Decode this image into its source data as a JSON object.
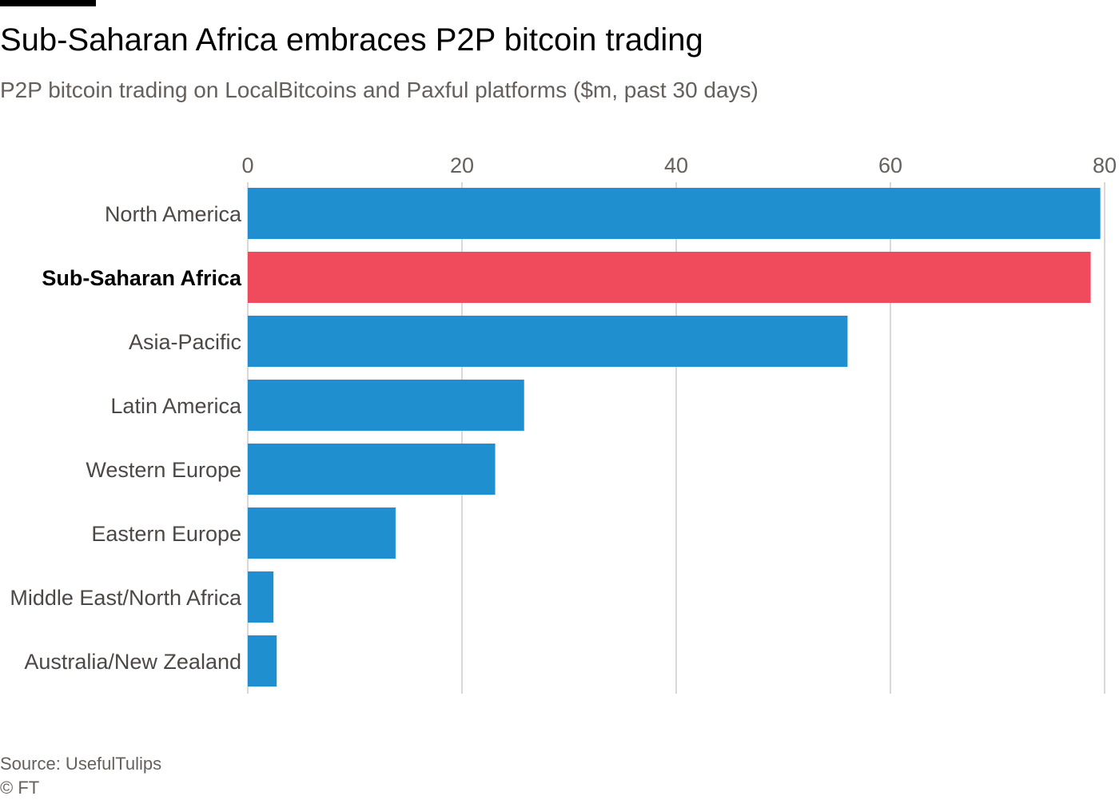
{
  "header": {
    "title": "Sub-Saharan Africa embraces P2P bitcoin trading",
    "subtitle": "P2P bitcoin trading on LocalBitcoins and Paxful platforms ($m, past 30 days)"
  },
  "footer": {
    "source": "Source: UsefulTulips",
    "copyright": "© FT"
  },
  "colors": {
    "bar_default": "#1f8fcf",
    "bar_highlight": "#f04b5c",
    "gridline": "#d9d9d9",
    "label_default": "#4d4845",
    "label_highlight": "#000000",
    "tick": "#66605c"
  },
  "chart_data": {
    "type": "bar",
    "orientation": "horizontal",
    "categories": [
      "North America",
      "Sub-Saharan Africa",
      "Asia-Pacific",
      "Latin America",
      "Western Europe",
      "Eastern Europe",
      "Middle East/North Africa",
      "Australia/New Zealand"
    ],
    "values": [
      79.6,
      78.7,
      56.0,
      25.8,
      23.1,
      13.8,
      2.4,
      2.7
    ],
    "highlight": "Sub-Saharan Africa",
    "xlim": [
      0,
      80
    ],
    "xticks": [
      "0",
      "20",
      "40",
      "60",
      "80"
    ],
    "xtick_values": [
      0,
      20,
      40,
      60,
      80
    ],
    "xaxis_position": "top",
    "grid": true
  }
}
